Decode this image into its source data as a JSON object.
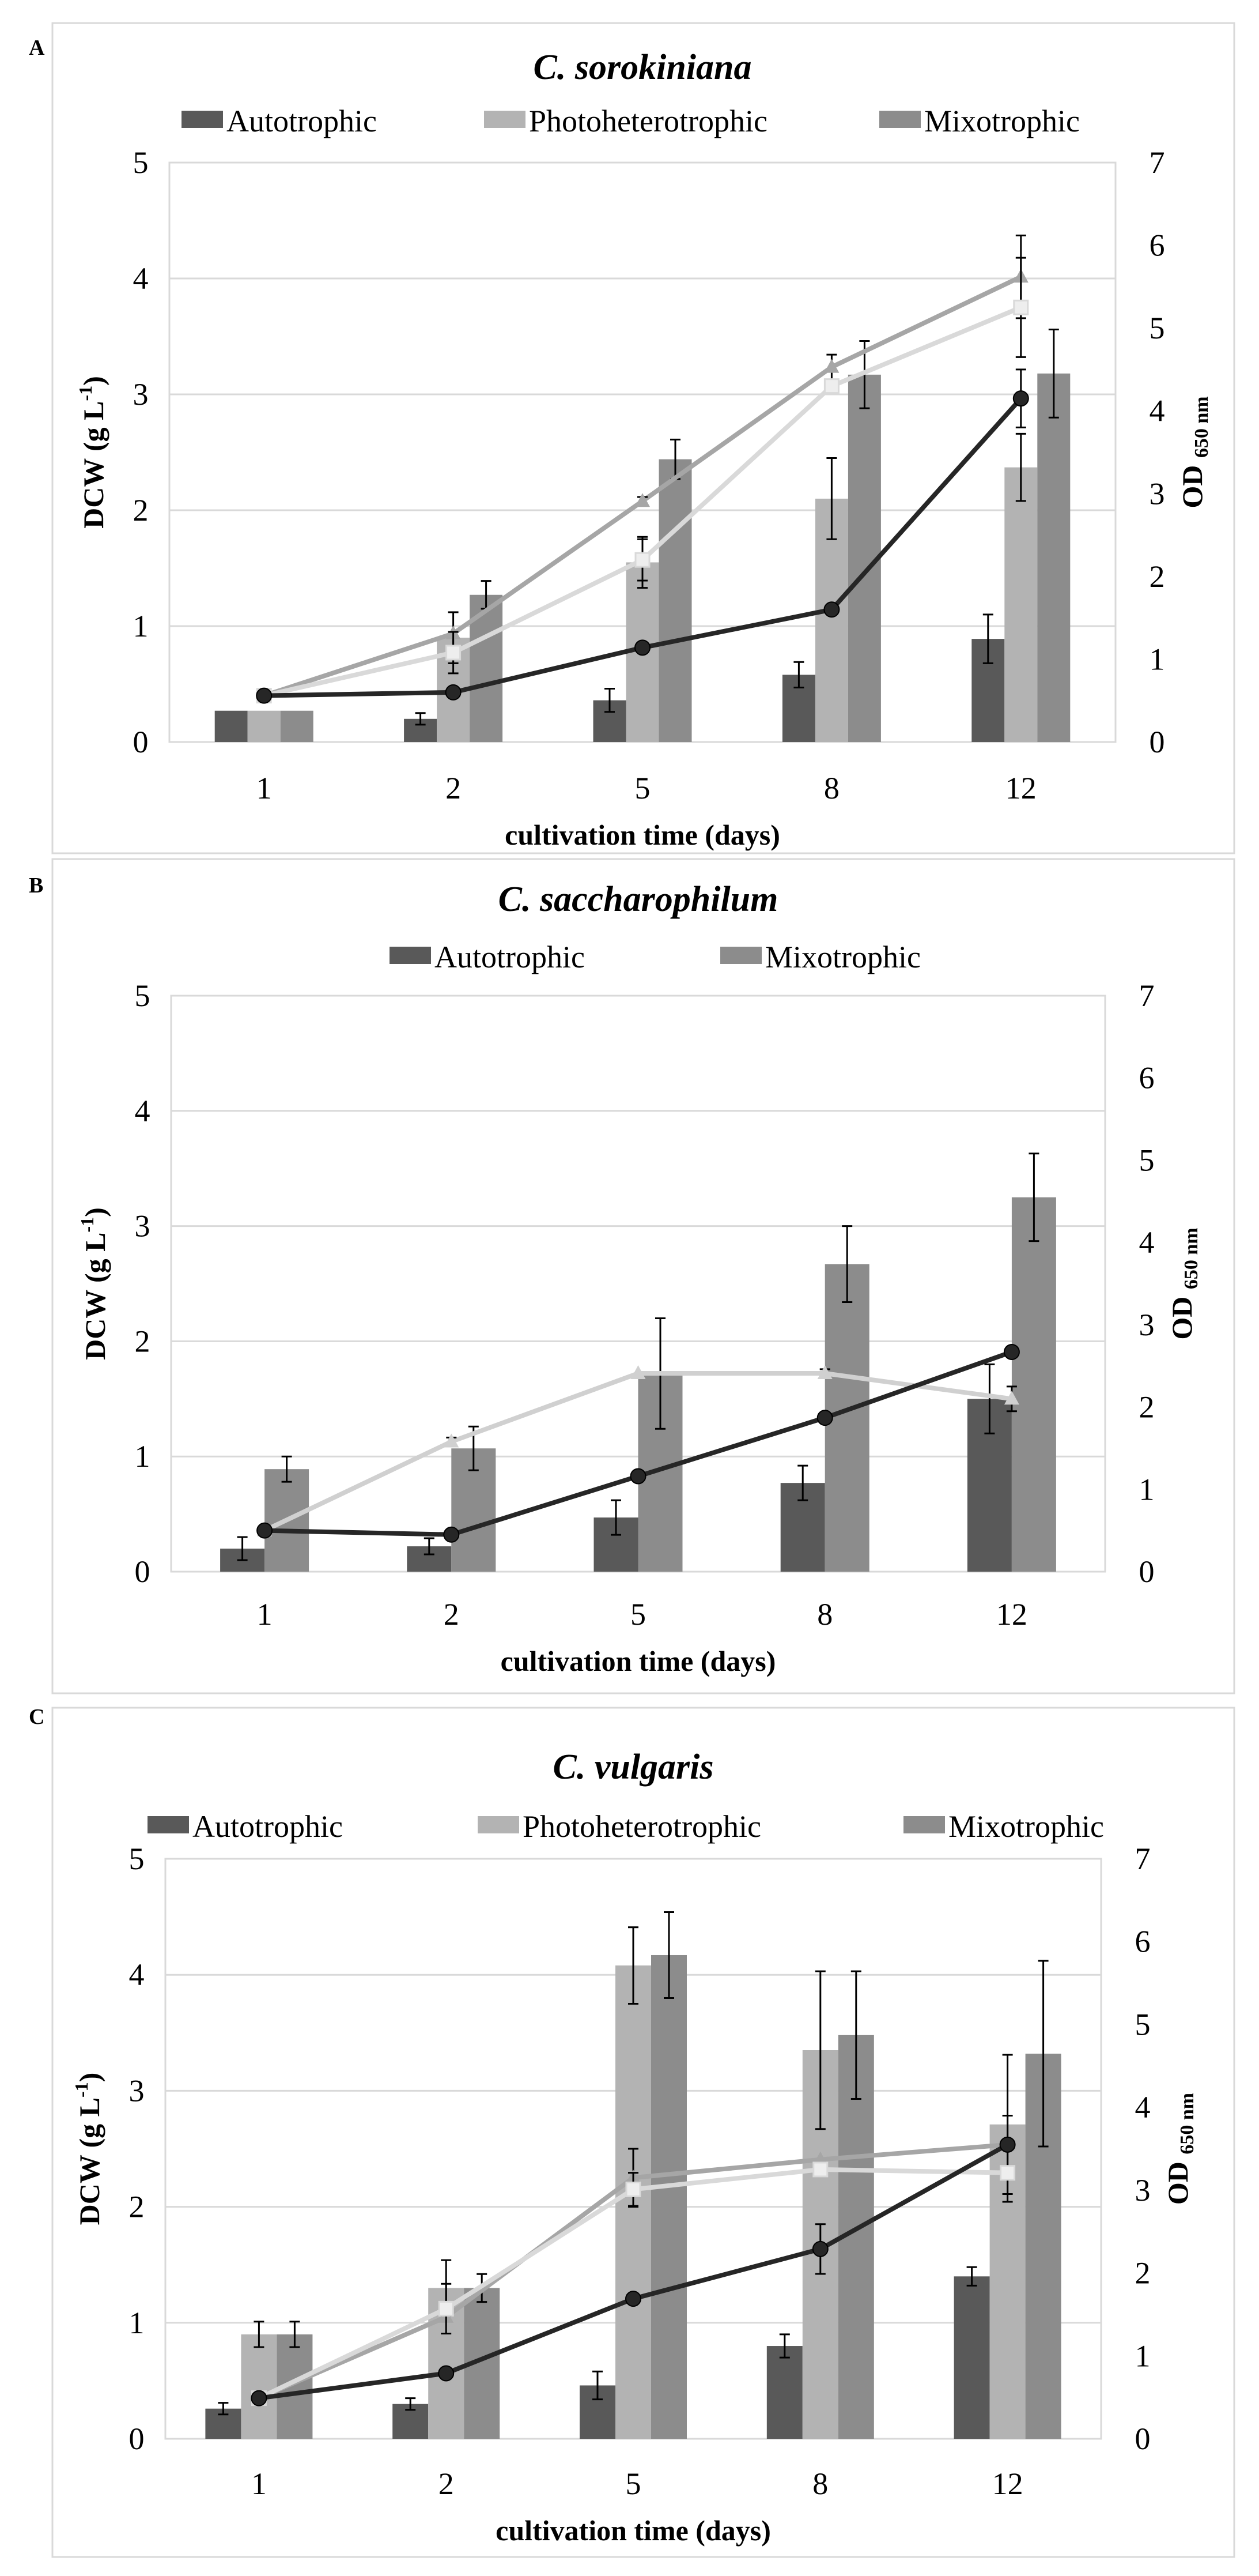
{
  "chart_data": [
    {
      "panel": "A",
      "type": "bar+line",
      "title": "C. sorokiniana",
      "categories": [
        "1",
        "2",
        "5",
        "8",
        "12"
      ],
      "xlabel": "cultivation time (days)",
      "ylabel": {
        "main": "DCW (g L",
        "sup": "-1",
        "end": ")"
      },
      "y2label": {
        "main": "OD ",
        "sub": "650 nm"
      },
      "ylim": [
        0,
        5
      ],
      "yticks": [
        "0",
        "1",
        "2",
        "3",
        "4",
        "5"
      ],
      "y2lim": [
        0,
        7
      ],
      "y2ticks": [
        "0",
        "1",
        "2",
        "3",
        "4",
        "5",
        "6",
        "7"
      ],
      "grid": true,
      "legend_position": "top",
      "series": [
        {
          "name": "Autotrophic",
          "color": "#595959",
          "values": [
            0.27,
            0.2,
            0.36,
            0.58,
            0.89
          ],
          "errors": [
            0,
            0.05,
            0.1,
            0.11,
            0.21
          ],
          "line": {
            "color": "#262626",
            "marker": "circle",
            "values": [
              0.56,
              0.6,
              1.14,
              1.6,
              4.15
            ],
            "errors": [
              0,
              0,
              0,
              0,
              0.35
            ]
          }
        },
        {
          "name": "Photoheterotrophic",
          "color": "#b3b3b3",
          "values": [
            0.27,
            0.9,
            1.55,
            2.1,
            2.37
          ],
          "errors": [
            0,
            0.22,
            0.22,
            0.35,
            0.29
          ],
          "line": {
            "color": "#d9d9d9",
            "marker": "square",
            "values": [
              0.56,
              1.08,
              2.2,
              4.3,
              5.25
            ],
            "errors": [
              0.05,
              0.25,
              0.25,
              0,
              0.6
            ]
          }
        },
        {
          "name": "Mixotrophic",
          "color": "#8c8c8c",
          "values": [
            0.27,
            1.27,
            2.44,
            3.17,
            3.18
          ],
          "errors": [
            0,
            0.12,
            0.17,
            0.29,
            0.38
          ],
          "line": {
            "color": "#a6a6a6",
            "marker": "triangle",
            "values": [
              0.56,
              1.31,
              2.91,
              4.53,
              5.62
            ],
            "errors": [
              0,
              0,
              0.05,
              0.15,
              0.5
            ]
          }
        }
      ]
    },
    {
      "panel": "B",
      "type": "bar+line",
      "title": "C. saccharophilum",
      "categories": [
        "1",
        "2",
        "5",
        "8",
        "12"
      ],
      "xlabel": "cultivation time (days)",
      "ylabel": {
        "main": "DCW (g L",
        "sup": "-1",
        "end": ")"
      },
      "y2label": {
        "main": "OD ",
        "sub": "650 nm"
      },
      "ylim": [
        0,
        5
      ],
      "yticks": [
        "0",
        "1",
        "2",
        "3",
        "4",
        "5"
      ],
      "y2lim": [
        0,
        7
      ],
      "y2ticks": [
        "0",
        "1",
        "2",
        "3",
        "4",
        "5",
        "6",
        "7"
      ],
      "grid": true,
      "legend_position": "top",
      "series": [
        {
          "name": "Autotrophic",
          "color": "#595959",
          "values": [
            0.2,
            0.22,
            0.47,
            0.77,
            1.5
          ],
          "errors": [
            0.1,
            0.07,
            0.15,
            0.15,
            0.3
          ],
          "line": {
            "color": "#262626",
            "marker": "circle",
            "values": [
              0.5,
              0.45,
              1.16,
              1.87,
              2.67
            ],
            "errors": [
              0,
              0,
              0,
              0,
              0
            ]
          }
        },
        {
          "name": "Mixotrophic",
          "color": "#8c8c8c",
          "values": [
            0.89,
            1.07,
            1.72,
            2.67,
            3.25
          ],
          "errors": [
            0.11,
            0.19,
            0.48,
            0.33,
            0.38
          ],
          "line": {
            "color": "#d0d0d0",
            "marker": "triangle",
            "values": [
              0.5,
              1.58,
              2.41,
              2.41,
              2.1
            ],
            "errors": [
              0,
              0.05,
              0,
              0.05,
              0.15
            ]
          }
        }
      ]
    },
    {
      "panel": "C",
      "type": "bar+line",
      "title": "C. vulgaris",
      "categories": [
        "1",
        "2",
        "5",
        "8",
        "12"
      ],
      "xlabel": "cultivation time (days)",
      "ylabel": {
        "main": "DCW (g L",
        "sup": "-1",
        "end": ")"
      },
      "y2label": {
        "main": "OD ",
        "sub": "650 nm"
      },
      "ylim": [
        0,
        5
      ],
      "yticks": [
        "0",
        "1",
        "2",
        "3",
        "4",
        "5"
      ],
      "y2lim": [
        0,
        7
      ],
      "y2ticks": [
        "0",
        "1",
        "2",
        "3",
        "4",
        "5",
        "6",
        "7"
      ],
      "grid": true,
      "legend_position": "top",
      "series": [
        {
          "name": "Autotrophic",
          "color": "#595959",
          "values": [
            0.26,
            0.3,
            0.46,
            0.8,
            1.4
          ],
          "errors": [
            0.05,
            0.05,
            0.12,
            0.1,
            0.08
          ],
          "line": {
            "color": "#262626",
            "marker": "circle",
            "values": [
              0.49,
              0.79,
              1.69,
              2.29,
              3.55
            ],
            "errors": [
              0,
              0,
              0,
              0.3,
              0
            ]
          }
        },
        {
          "name": "Photoheterotrophic",
          "color": "#b3b3b3",
          "values": [
            0.9,
            1.3,
            4.08,
            3.35,
            2.71
          ],
          "errors": [
            0.11,
            0.24,
            0.33,
            0.68,
            0.6
          ],
          "line": {
            "color": "#d9d9d9",
            "marker": "square",
            "values": [
              0.49,
              1.57,
              3.01,
              3.25,
              3.21
            ],
            "errors": [
              0,
              0.3,
              0.2,
              0.05,
              0.35
            ]
          }
        },
        {
          "name": "Mixotrophic",
          "color": "#8c8c8c",
          "values": [
            0.9,
            1.3,
            4.17,
            3.48,
            3.32
          ],
          "errors": [
            0.11,
            0.12,
            0.37,
            0.55,
            0.8
          ],
          "line": {
            "color": "#a6a6a6",
            "marker": "triangle",
            "values": [
              0.49,
              1.47,
              3.15,
              3.37,
              3.55
            ],
            "errors": [
              0,
              0,
              0.35,
              0,
              0.35
            ]
          }
        }
      ]
    }
  ]
}
